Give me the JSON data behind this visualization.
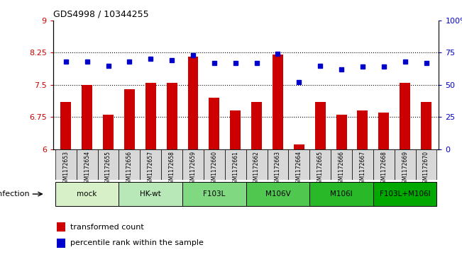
{
  "title": "GDS4998 / 10344255",
  "samples": [
    "GSM1172653",
    "GSM1172654",
    "GSM1172655",
    "GSM1172656",
    "GSM1172657",
    "GSM1172658",
    "GSM1172659",
    "GSM1172660",
    "GSM1172661",
    "GSM1172662",
    "GSM1172663",
    "GSM1172664",
    "GSM1172665",
    "GSM1172666",
    "GSM1172667",
    "GSM1172668",
    "GSM1172669",
    "GSM1172670"
  ],
  "bar_values": [
    7.1,
    7.5,
    6.8,
    7.4,
    7.55,
    7.55,
    8.15,
    7.2,
    6.9,
    7.1,
    8.2,
    6.1,
    7.1,
    6.8,
    6.9,
    6.85,
    7.55,
    7.1
  ],
  "percentile_values": [
    68,
    68,
    65,
    68,
    70,
    69,
    73,
    67,
    67,
    67,
    74,
    52,
    65,
    62,
    64,
    64,
    68,
    67
  ],
  "groups": [
    {
      "label": "mock",
      "start": 0,
      "end": 2,
      "color": "#d8f0c8"
    },
    {
      "label": "HK-wt",
      "start": 3,
      "end": 5,
      "color": "#b8e8b8"
    },
    {
      "label": "F103L",
      "start": 6,
      "end": 8,
      "color": "#80d880"
    },
    {
      "label": "M106V",
      "start": 9,
      "end": 11,
      "color": "#50c850"
    },
    {
      "label": "M106I",
      "start": 12,
      "end": 14,
      "color": "#28b828"
    },
    {
      "label": "F103L+M106I",
      "start": 15,
      "end": 17,
      "color": "#00a800"
    }
  ],
  "ylim_left": [
    6,
    9
  ],
  "ylim_right": [
    0,
    100
  ],
  "yticks_left": [
    6,
    6.75,
    7.5,
    8.25,
    9
  ],
  "ytick_labels_left": [
    "6",
    "6.75",
    "7.5",
    "8.25",
    "9"
  ],
  "yticks_right": [
    0,
    25,
    50,
    75,
    100
  ],
  "ytick_labels_right": [
    "0",
    "25",
    "50",
    "75",
    "100%"
  ],
  "bar_color": "#cc0000",
  "dot_color": "#0000cc",
  "bar_width": 0.5,
  "infection_label": "infection",
  "legend_bar_label": "transformed count",
  "legend_dot_label": "percentile rank within the sample",
  "dotted_lines": [
    6.75,
    7.5,
    8.25
  ],
  "xtick_bg": "#d8d8d8"
}
